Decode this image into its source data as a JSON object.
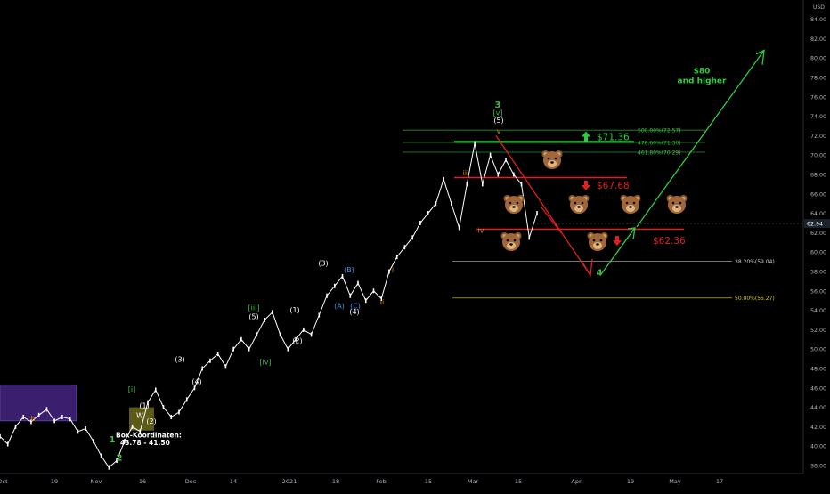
{
  "chart_data": {
    "type": "line",
    "price_axis": {
      "unit_label": "USD",
      "ticks": [
        "84.00",
        "82.00",
        "80.00",
        "78.00",
        "76.00",
        "74.00",
        "72.00",
        "70.00",
        "68.00",
        "66.00",
        "64.00",
        "62.00",
        "60.00",
        "58.00",
        "56.00",
        "54.00",
        "52.00",
        "50.00",
        "48.00",
        "46.00",
        "44.00",
        "42.00",
        "40.00",
        "38.00"
      ],
      "current_price": "62.94",
      "ylim": [
        37,
        85
      ]
    },
    "time_axis": {
      "ticks": [
        "Oct",
        "19",
        "Nov",
        "16",
        "Dec",
        "14",
        "2021",
        "18",
        "Feb",
        "15",
        "Mar",
        "15",
        "Apr",
        "19",
        "May",
        "17"
      ]
    },
    "series": [
      {
        "values": [
          41.0,
          40.2,
          42.0,
          43.0,
          42.5,
          43.2,
          43.8,
          42.6,
          43.0,
          42.8,
          41.5,
          41.8,
          40.5,
          39.0,
          37.8,
          38.5,
          40.5,
          42.0,
          41.5,
          44.5,
          45.8,
          44.0,
          43.0,
          43.5,
          44.8,
          46.0,
          48.0,
          48.8,
          49.5,
          48.2,
          50.0,
          51.0,
          50.0,
          51.5,
          53.0,
          53.8,
          51.5,
          50.0,
          51.0,
          52.0,
          51.5,
          53.5,
          55.5,
          56.5,
          57.5,
          55.5,
          56.8,
          55.0,
          56.0,
          55.2,
          58.0,
          59.5,
          60.5,
          61.5,
          63.0,
          64.0,
          65.0,
          67.5,
          65.0,
          62.5,
          67.0,
          71.2,
          67.0,
          70.0,
          68.0,
          69.5,
          68.0,
          67.0,
          61.5,
          64.0
        ]
      }
    ],
    "levels": [
      {
        "label": "500.00%(72.57)",
        "value": 72.57,
        "color": "#2e8b2e"
      },
      {
        "label": "478.60%(71.30)",
        "value": 71.3,
        "color": "#2e8b2e"
      },
      {
        "label": "461.80%(70.29)",
        "value": 70.29,
        "color": "#2e8b2e"
      },
      {
        "label": "38.20%(59.04)",
        "value": 59.04,
        "color": "#9a9a9a"
      },
      {
        "label": "50.00%(55.27)",
        "value": 55.27,
        "color": "#b8b300"
      }
    ],
    "price_targets": [
      {
        "label": "$71.36",
        "value": 71.36,
        "color": "#2ecc40",
        "direction": "up"
      },
      {
        "label": "$67.68",
        "value": 67.68,
        "color": "#e02020",
        "direction": "down"
      },
      {
        "label": "$62.36",
        "value": 62.36,
        "color": "#e02020",
        "direction": "down"
      }
    ],
    "wave_labels": [
      "b",
      "1",
      "2",
      "[i]",
      "(1)",
      "W",
      "(2)",
      "(3)",
      "(4)",
      "[iii]",
      "(5)",
      "[iv]",
      "(1)",
      "(2)",
      "(3)",
      "(B)",
      "(A)",
      "(C)",
      "(4)",
      "i",
      "ii",
      "iii",
      "iv",
      "3",
      "[v]",
      "(5)",
      "v",
      "4"
    ],
    "annotations": {
      "target_text": [
        "$80",
        "and higher"
      ],
      "box_text": [
        "Box-Koordinaten:",
        "43.78 - 41.50"
      ],
      "bear_icon": "bear-face-icon",
      "bear_count": 9
    },
    "colors": {
      "background": "#000000",
      "price_line": "#ffffff",
      "bullish": "#2ecc40",
      "bearish": "#e02020",
      "wave_orange": "#e08a00",
      "wave_blue": "#4a90d9",
      "wave_green": "#3fbf3f",
      "box_purple": "#3a1f6e",
      "box_olive": "#6b6a1a"
    }
  }
}
